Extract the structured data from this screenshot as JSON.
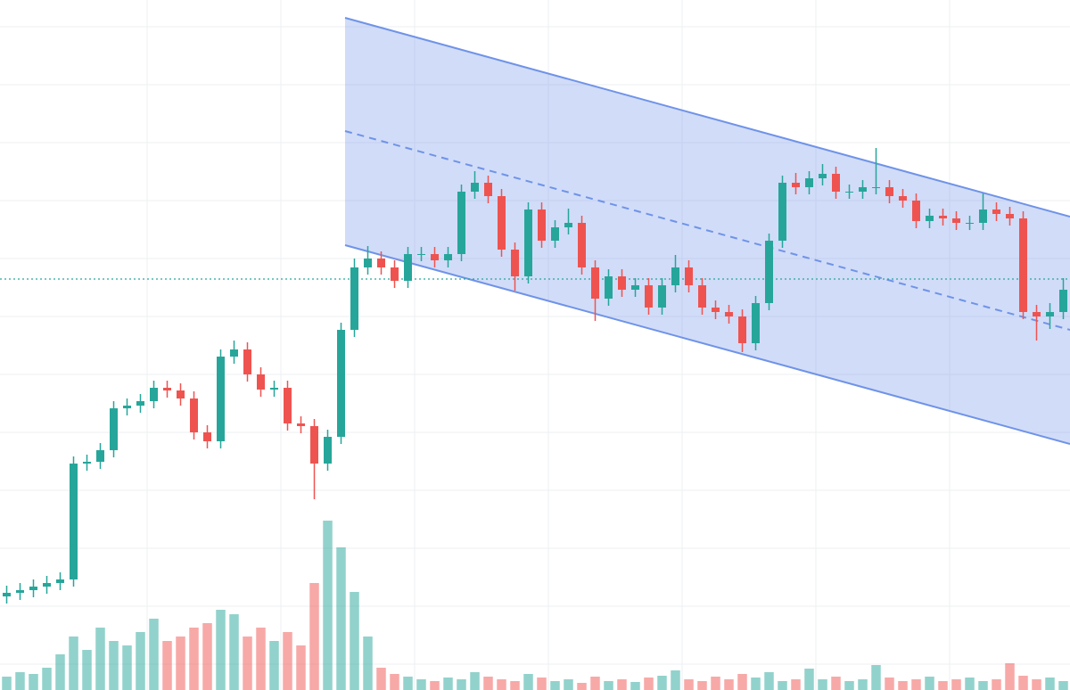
{
  "chart_data": {
    "type": "candlestick",
    "xlim": [
      0,
      80
    ],
    "ylim": [
      0,
      774
    ],
    "y2lim": [
      0,
      774
    ],
    "grid": true,
    "up_color": "#26a69a",
    "down_color": "#ef5350",
    "open": [
      105,
      109,
      112,
      116,
      120,
      124,
      254,
      256,
      269,
      316,
      319,
      324,
      339,
      336,
      327,
      289,
      279,
      374,
      382,
      354,
      337,
      339,
      299,
      296,
      254,
      284,
      404,
      474,
      484,
      474,
      459,
      489,
      489,
      482,
      489,
      559,
      569,
      554,
      494,
      464,
      539,
      504,
      519,
      524,
      474,
      439,
      464,
      449,
      454,
      429,
      454,
      474,
      454,
      429,
      424,
      419,
      389,
      434,
      504,
      569,
      564,
      574,
      579,
      559,
      559,
      564,
      564,
      554,
      549,
      526,
      532,
      529,
      524,
      524,
      539,
      534,
      529,
      424,
      419,
      424
    ],
    "high": [
      117,
      120,
      124,
      128,
      132,
      262,
      264,
      277,
      324,
      327,
      332,
      347,
      347,
      344,
      335,
      297,
      382,
      392,
      390,
      362,
      347,
      347,
      307,
      304,
      292,
      412,
      484,
      498,
      492,
      482,
      497,
      497,
      497,
      497,
      567,
      582,
      577,
      562,
      502,
      547,
      547,
      527,
      540,
      532,
      482,
      472,
      472,
      462,
      462,
      462,
      488,
      482,
      462,
      437,
      432,
      427,
      442,
      512,
      577,
      580,
      582,
      590,
      587,
      567,
      572,
      608,
      572,
      562,
      557,
      540,
      540,
      537,
      532,
      557,
      547,
      542,
      537,
      432,
      434,
      462
    ],
    "low": [
      97,
      101,
      104,
      108,
      112,
      116,
      246,
      248,
      261,
      308,
      311,
      316,
      328,
      319,
      281,
      271,
      271,
      366,
      346,
      329,
      329,
      291,
      288,
      214,
      246,
      276,
      396,
      466,
      466,
      451,
      451,
      481,
      474,
      474,
      481,
      551,
      546,
      486,
      448,
      456,
      496,
      496,
      511,
      466,
      414,
      431,
      441,
      441,
      421,
      421,
      446,
      446,
      421,
      416,
      411,
      379,
      381,
      426,
      496,
      556,
      556,
      566,
      551,
      551,
      551,
      556,
      546,
      541,
      518,
      518,
      521,
      516,
      516,
      516,
      526,
      521,
      416,
      392,
      405,
      416
    ],
    "close": [
      109,
      112,
      116,
      120,
      124,
      254,
      256,
      269,
      316,
      319,
      324,
      339,
      336,
      327,
      289,
      279,
      374,
      382,
      354,
      337,
      339,
      299,
      296,
      254,
      284,
      404,
      474,
      484,
      474,
      459,
      489,
      489,
      482,
      489,
      559,
      569,
      554,
      494,
      464,
      539,
      504,
      519,
      524,
      474,
      439,
      464,
      449,
      454,
      429,
      454,
      474,
      454,
      429,
      424,
      419,
      389,
      434,
      504,
      569,
      564,
      574,
      579,
      559,
      559,
      564,
      564,
      554,
      549,
      526,
      532,
      529,
      524,
      524,
      539,
      534,
      529,
      424,
      419,
      424,
      449
    ],
    "volume": [
      15,
      20,
      18,
      25,
      40,
      60,
      45,
      70,
      55,
      50,
      65,
      80,
      55,
      60,
      70,
      75,
      90,
      85,
      60,
      70,
      55,
      65,
      50,
      120,
      190,
      160,
      110,
      60,
      25,
      18,
      15,
      12,
      10,
      14,
      12,
      20,
      15,
      12,
      10,
      18,
      14,
      10,
      12,
      8,
      15,
      10,
      12,
      9,
      14,
      16,
      22,
      12,
      10,
      15,
      12,
      18,
      14,
      20,
      10,
      12,
      24,
      12,
      15,
      10,
      12,
      28,
      14,
      10,
      12,
      15,
      10,
      12,
      14,
      10,
      12,
      30,
      16,
      12,
      14,
      10
    ],
    "channel": {
      "x": [
        25.8,
        80
      ],
      "upper": [
        754,
        531
      ],
      "lower": [
        499,
        276
      ],
      "middle": [
        627,
        404
      ],
      "color": "#6f93e8"
    },
    "price_line": 461
  }
}
